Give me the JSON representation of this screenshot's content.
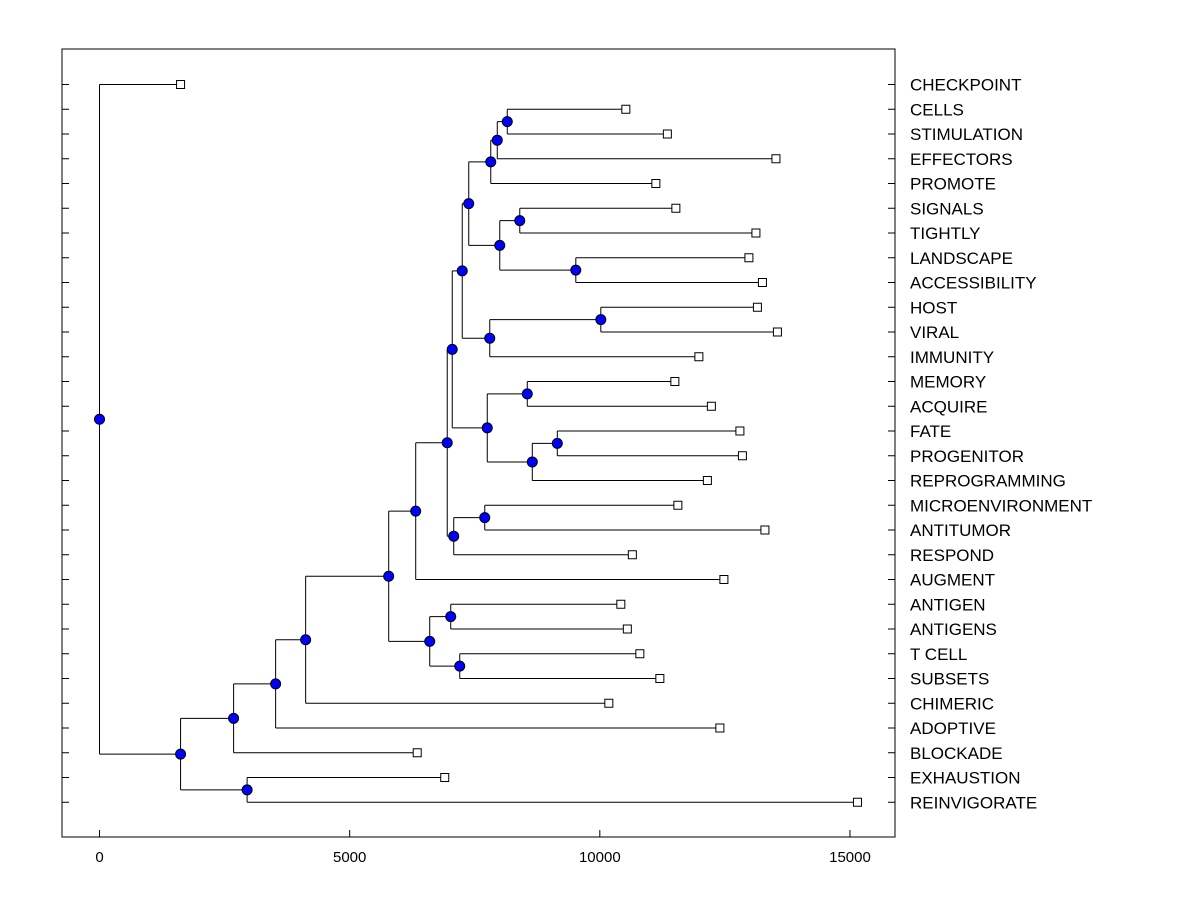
{
  "chart_data": {
    "type": "dendrogram",
    "title": "",
    "xlabel": "",
    "ylabel": "",
    "xlim": [
      -750,
      15900
    ],
    "x_ticks": [
      0,
      5000,
      10000,
      15000
    ],
    "x_tick_labels": [
      "0",
      "5000",
      "10000",
      "15000"
    ],
    "grid": false,
    "leaf_labels": [
      "CHECKPOINT",
      "CELLS",
      "STIMULATION",
      "EFFECTORS",
      "PROMOTE",
      "SIGNALS",
      "TIGHTLY",
      "LANDSCAPE",
      "ACCESSIBILITY",
      "HOST",
      "VIRAL",
      "IMMUNITY",
      "MEMORY",
      "ACQUIRE",
      "FATE",
      "PROGENITOR",
      "REPROGRAMMING",
      "MICROENVIRONMENT",
      "ANTITUMOR",
      "RESPOND",
      "AUGMENT",
      "ANTIGEN",
      "ANTIGENS",
      "T CELL",
      "SUBSETS",
      "CHIMERIC",
      "ADOPTIVE",
      "BLOCKADE",
      "EXHAUSTION",
      "REINVIGORATE"
    ],
    "leaf_values": [
      1620,
      10520,
      11350,
      13520,
      11120,
      11520,
      13120,
      12980,
      13250,
      13150,
      13550,
      11980,
      11500,
      12230,
      12800,
      12850,
      12150,
      11560,
      13300,
      10650,
      12480,
      10420,
      10550,
      10800,
      11200,
      10180,
      12400,
      6350,
      6900,
      15150
    ],
    "node_style": {
      "internal_color": "#0000ff",
      "leaf_marker": "square"
    },
    "tree": {
      "x": 0,
      "children": [
        {
          "leaf": 0
        },
        {
          "x": 1620,
          "children": [
            {
              "x": 2680,
              "children": [
                {
                  "x": 3520,
                  "children": [
                    {
                      "x": 4120,
                      "children": [
                        {
                          "x": 5780,
                          "children": [
                            {
                              "x": 6320,
                              "children": [
                                {
                                  "x": 6950,
                                  "children": [
                                    {
                                      "x": 7050,
                                      "children": [
                                        {
                                          "x": 7250,
                                          "children": [
                                            {
                                              "x": 7380,
                                              "children": [
                                                {
                                                  "x": 7820,
                                                  "children": [
                                                    {
                                                      "x": 7950,
                                                      "children": [
                                                        {
                                                          "x": 8150,
                                                          "children": [
                                                            {
                                                              "leaf": 1
                                                            },
                                                            {
                                                              "leaf": 2
                                                            }
                                                          ]
                                                        },
                                                        {
                                                          "leaf": 3
                                                        }
                                                      ]
                                                    },
                                                    {
                                                      "leaf": 4
                                                    }
                                                  ]
                                                },
                                                {
                                                  "x": 8000,
                                                  "children": [
                                                    {
                                                      "x": 8400,
                                                      "children": [
                                                        {
                                                          "leaf": 5
                                                        },
                                                        {
                                                          "leaf": 6
                                                        }
                                                      ]
                                                    },
                                                    {
                                                      "x": 9520,
                                                      "children": [
                                                        {
                                                          "leaf": 7
                                                        },
                                                        {
                                                          "leaf": 8
                                                        }
                                                      ]
                                                    }
                                                  ]
                                                }
                                              ]
                                            },
                                            {
                                              "x": 7800,
                                              "children": [
                                                {
                                                  "x": 10020,
                                                  "children": [
                                                    {
                                                      "leaf": 9
                                                    },
                                                    {
                                                      "leaf": 10
                                                    }
                                                  ]
                                                },
                                                {
                                                  "leaf": 11
                                                }
                                              ]
                                            }
                                          ]
                                        },
                                        {
                                          "x": 7750,
                                          "children": [
                                            {
                                              "x": 8550,
                                              "children": [
                                                {
                                                  "leaf": 12
                                                },
                                                {
                                                  "leaf": 13
                                                }
                                              ]
                                            },
                                            {
                                              "x": 8650,
                                              "children": [
                                                {
                                                  "x": 9150,
                                                  "children": [
                                                    {
                                                      "leaf": 14
                                                    },
                                                    {
                                                      "leaf": 15
                                                    }
                                                  ]
                                                },
                                                {
                                                  "leaf": 16
                                                }
                                              ]
                                            }
                                          ]
                                        }
                                      ]
                                    },
                                    {
                                      "x": 7080,
                                      "children": [
                                        {
                                          "x": 7700,
                                          "children": [
                                            {
                                              "leaf": 17
                                            },
                                            {
                                              "leaf": 18
                                            }
                                          ]
                                        },
                                        {
                                          "leaf": 19
                                        }
                                      ]
                                    }
                                  ]
                                },
                                {
                                  "leaf": 20
                                }
                              ]
                            },
                            {
                              "x": 6600,
                              "children": [
                                {
                                  "x": 7020,
                                  "children": [
                                    {
                                      "leaf": 21
                                    },
                                    {
                                      "leaf": 22
                                    }
                                  ]
                                },
                                {
                                  "x": 7200,
                                  "children": [
                                    {
                                      "leaf": 23
                                    },
                                    {
                                      "leaf": 24
                                    }
                                  ]
                                }
                              ]
                            }
                          ]
                        },
                        {
                          "leaf": 25
                        }
                      ]
                    },
                    {
                      "leaf": 26
                    }
                  ]
                },
                {
                  "leaf": 27
                }
              ]
            },
            {
              "x": 2950,
              "children": [
                {
                  "leaf": 28
                },
                {
                  "leaf": 29
                }
              ]
            }
          ]
        }
      ]
    }
  }
}
